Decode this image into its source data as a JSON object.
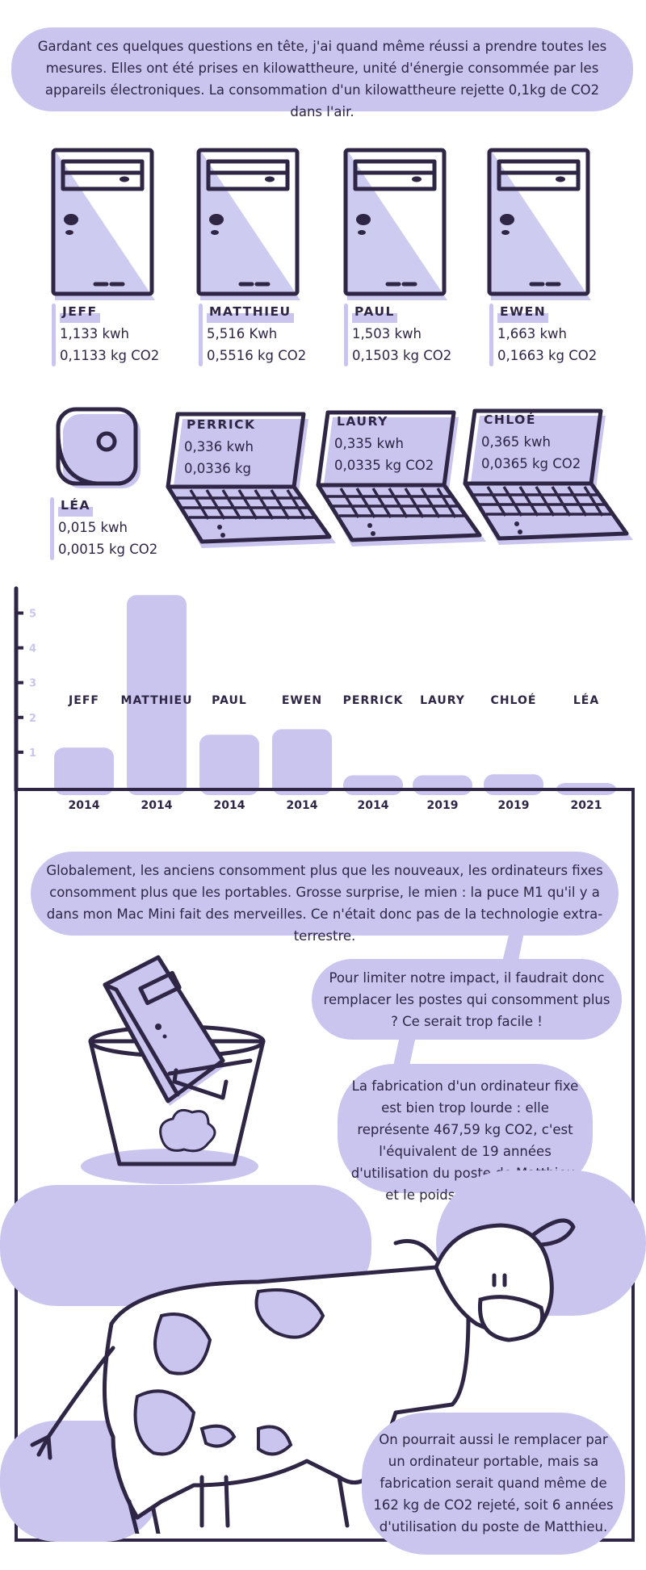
{
  "intro_text": "Gardant ces quelques questions en tête, j'ai quand même réussi a prendre toutes les mesures. Elles ont été prises en kilowattheure, unité d'énergie consommée par les appareils électroniques. La consommation d'un kilowattheure rejette 0,1kg de CO2 dans l'air.",
  "devices": [
    {
      "name": "JEFF",
      "kwh": "1,133 kwh",
      "co2": "0,1133 kg CO2",
      "kind": "desktop"
    },
    {
      "name": "MATTHIEU",
      "kwh": "5,516 Kwh",
      "co2": "0,5516 kg CO2",
      "kind": "desktop"
    },
    {
      "name": "PAUL",
      "kwh": "1,503 kwh",
      "co2": "0,1503 kg CO2",
      "kind": "desktop"
    },
    {
      "name": "EWEN",
      "kwh": "1,663 kwh",
      "co2": "0,1663 kg CO2",
      "kind": "desktop"
    },
    {
      "name": "LÉA",
      "kwh": "0,015 kwh",
      "co2": "0,0015 kg CO2",
      "kind": "mini"
    },
    {
      "name": "PERRICK",
      "kwh": "0,336 kwh",
      "co2": "0,0336  kg",
      "kind": "laptop"
    },
    {
      "name": "LAURY",
      "kwh": "0,335 kwh",
      "co2": "0,0335  kg CO2",
      "kind": "laptop"
    },
    {
      "name": "CHLOÉ",
      "kwh": "0,365 kwh",
      "co2": "0,0365 kg CO2",
      "kind": "laptop"
    }
  ],
  "chart_data": {
    "type": "bar",
    "categories": [
      "JEFF",
      "MATTHIEU",
      "PAUL",
      "EWEN",
      "PERRICK",
      "LAURY",
      "CHLOÉ",
      "LÉA"
    ],
    "years": [
      "2014",
      "2014",
      "2014",
      "2014",
      "2014",
      "2019",
      "2019",
      "2021"
    ],
    "values": [
      1.133,
      5.516,
      1.503,
      1.663,
      0.336,
      0.335,
      0.365,
      0.015
    ],
    "yticks": [
      "1",
      "2",
      "3",
      "4",
      "5"
    ],
    "ylim": [
      0,
      5.8
    ],
    "bar_color": "#c9c5ef"
  },
  "conclusion_text": "Globalement, les anciens consomment plus que les nouveaux, les ordinateurs fixes consomment plus que les portables. Grosse surprise, le mien : la puce M1 qu'il y a dans mon Mac Mini fait des merveilles.  Ce n'était donc pas de la technologie extra-terrestre.",
  "impact_text": "Pour limiter notre impact, il faudrait donc remplacer les postes qui consomment plus ? Ce serait trop facile !",
  "fabrication_text": "La fabrication d'un ordinateur fixe est bien trop lourde : elle représente 467,59 kg CO2, c'est l'équivalent de 19 années d'utilisation du poste de Matthieu, et le poids d'une vache.",
  "laptop_text": "On pourrait aussi le remplacer par un ordinateur portable, mais sa fabrication serait quand même de 162 kg de CO2 rejeté, soit 6 années d'utilisation du poste de Matthieu.",
  "colors": {
    "ink": "#2f2545",
    "accent": "#c9c5ef"
  }
}
